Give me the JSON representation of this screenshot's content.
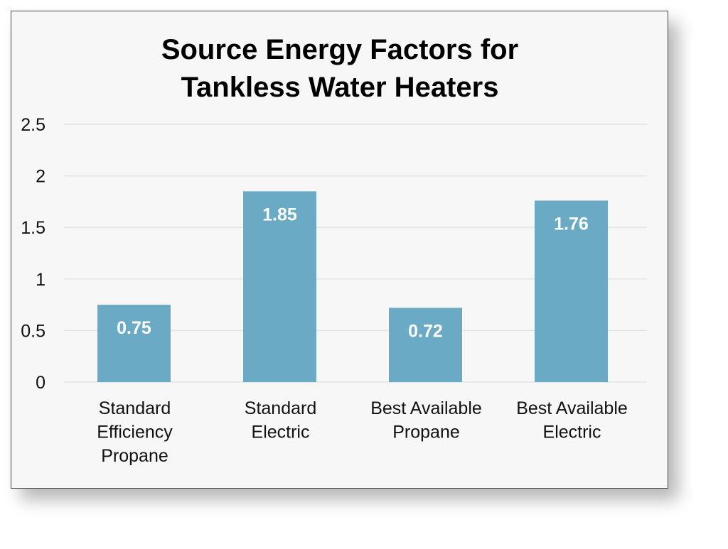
{
  "chart_data": {
    "type": "bar",
    "title": [
      "Source Energy Factors for",
      "Tankless Water Heaters"
    ],
    "categories": [
      [
        "Standard",
        "Efficiency",
        "Propane"
      ],
      [
        "Standard",
        "Electric"
      ],
      [
        "Best Available",
        "Propane"
      ],
      [
        "Best Available",
        "Electric"
      ]
    ],
    "values": [
      0.75,
      1.85,
      0.72,
      1.76
    ],
    "data_labels": [
      "0.75",
      "1.85",
      "0.72",
      "1.76"
    ],
    "xlabel": "",
    "ylabel": "",
    "ylim": [
      0,
      2.5
    ],
    "yticks": [
      "0",
      "0.5",
      "1",
      "1.5",
      "2",
      "2.5"
    ],
    "grid": true,
    "colors": {
      "bar": "#6aaac4",
      "grid": "#e4e4e4",
      "background": "#f7f7f7"
    }
  }
}
